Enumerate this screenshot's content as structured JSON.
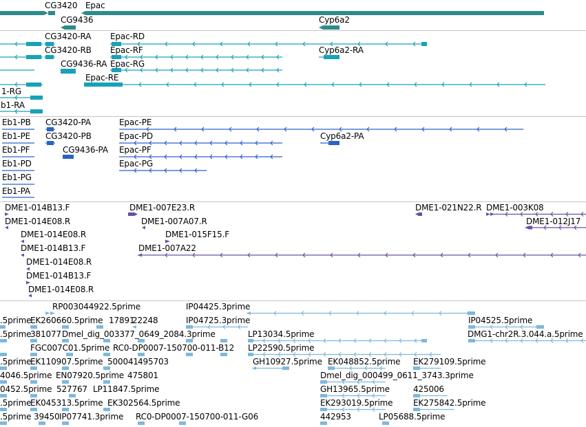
{
  "colors": {
    "gene": "#2e8b8b",
    "transcript": "#17a2b8",
    "protein": "#2a62c9",
    "clone": "#6a4fa3",
    "est": "#7eb8dc",
    "separator": "#c4c4c4"
  },
  "tracks": [
    {
      "id": "gene",
      "labels": [
        "CG3420",
        "Epac",
        "CG9436",
        "Cyp6a2"
      ]
    },
    {
      "id": "transcript",
      "labels": [
        "CG3420-RA",
        "Epac-RD",
        "CG3420-RB",
        "Epac-RF",
        "Cyp6a2-RA",
        "CG9436-RA",
        "Epac-RG",
        "Epac-RE",
        "1-RG",
        "b1-RA"
      ]
    },
    {
      "id": "protein",
      "labels": [
        "Eb1-PB",
        "CG3420-PA",
        "Epac-PE",
        "Eb1-PE",
        "CG3420-PB",
        "Epac-PD",
        "Cyp6a2-PA",
        "Eb1-PF",
        "CG9436-PA",
        "Epac-PF",
        "Eb1-PD",
        "Epac-PG",
        "Eb1-PG",
        "Eb1-PA"
      ]
    },
    {
      "id": "clone",
      "labels": [
        "DME1-014B13.F",
        "DME1-007E23.R",
        "DME1-021N22.R",
        "DME1-003K08",
        "DME1-014E08.R",
        "DME1-007A07.R",
        "DME1-012J17",
        "DME1-014E08.R",
        "DME1-015F15.F",
        "DME1-014B13.F",
        "DME1-007A22",
        "DME1-014E08.R",
        "DME1-014B13.F",
        "DME1-014E08.R"
      ]
    },
    {
      "id": "est",
      "labels": [
        "RP003044922.5prime",
        "IP04425.3prime",
        ".5prime",
        "EK260660.5prime",
        "17891",
        "22248",
        "IP04725.3prime",
        "IP04525.5prime",
        ".5prime",
        "381077",
        "Dmel_dig_003377_0649_2084.3prime",
        "LP13034.5prime",
        "DMG1-chr2R.3.044.a.5prime",
        "FGC007C01.5prime",
        "RC0-DP0007-150700-011-B12",
        "LP22590.5prime",
        ".5prime",
        "EK110907.5prime",
        "500041",
        "495703",
        "GH10927.5prime",
        "EK048852.5prime",
        "EK279109.5prime",
        "4046.5prime",
        "EN07920.5prime",
        "475801",
        "Dmel_dig_000499_0611_3743.3prime",
        "0452.5prime",
        "527767",
        "LP11847.5prime",
        "GH13965.5prime",
        "425006",
        ".5prime",
        "EK045313.5prime",
        "EK302564.5prime",
        "EK293019.5prime",
        "EK275842.5prime",
        ".5prime",
        "39450",
        "IP07741.3prime",
        "RC0-DP0007-150700-011-G06",
        "442953",
        "LP05688.5prime"
      ]
    }
  ]
}
